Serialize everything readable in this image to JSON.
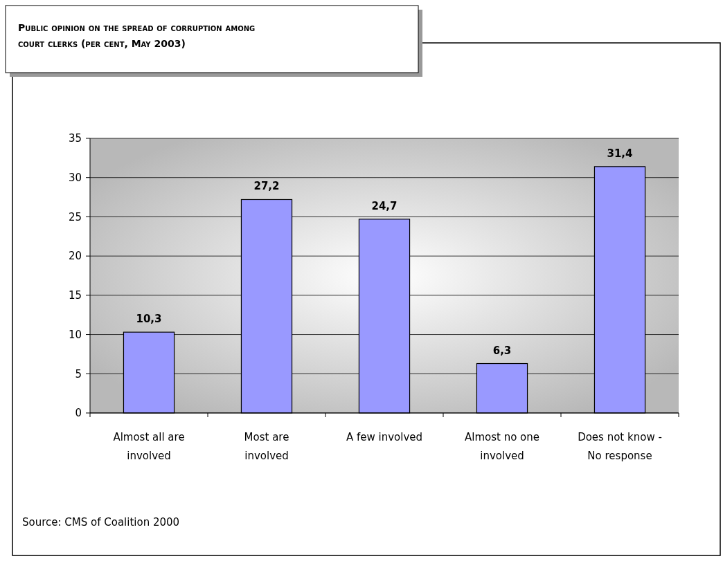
{
  "chart_data": {
    "type": "bar",
    "title": "Public opinion on the spread of corruption among court clerks (per cent, May 2003)",
    "categories": [
      "Almost all are involved",
      "Most are involved",
      "A few involved",
      "Almost no one involved",
      "Does not know - No response"
    ],
    "values": [
      10.3,
      27.2,
      24.7,
      6.3,
      31.4
    ],
    "value_labels": [
      "10,3",
      "27,2",
      "24,7",
      "6,3",
      "31,4"
    ],
    "color": "#9999ff",
    "ylim": [
      0,
      35
    ],
    "yticks": [
      0,
      5,
      10,
      15,
      20,
      25,
      30,
      35
    ],
    "grid": "y",
    "annotations": [
      "Source: CMS of Coalition 2000"
    ]
  }
}
